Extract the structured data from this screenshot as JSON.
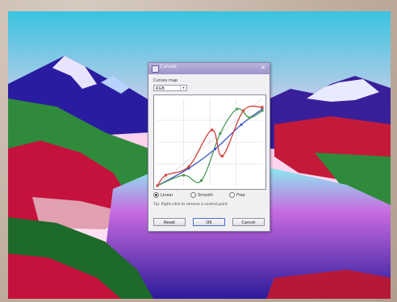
{
  "dialog": {
    "title": "Curves",
    "close_glyph": "✕",
    "channel_label": "Curves map",
    "channel_value": "RGB",
    "radio_options": [
      {
        "label": "Linear",
        "selected": true
      },
      {
        "label": "Smooth",
        "selected": false
      },
      {
        "label": "Free",
        "selected": false
      }
    ],
    "hint": "Tip: Right-click to remove a control point",
    "buttons": {
      "reset": "Reset",
      "ok": "OK",
      "cancel": "Cancel"
    }
  },
  "colors": {
    "red_curve": "#d0413a",
    "green_curve": "#4a9a55",
    "blue_curve": "#3e57c8",
    "titlebar": "#9c94c9"
  },
  "curves": {
    "red": [
      [
        0,
        0
      ],
      [
        0.08,
        0.12
      ],
      [
        0.3,
        0.22
      ],
      [
        0.52,
        0.64
      ],
      [
        0.62,
        0.34
      ],
      [
        0.82,
        0.86
      ],
      [
        1,
        0.9
      ]
    ],
    "green": [
      [
        0,
        0
      ],
      [
        0.25,
        0.12
      ],
      [
        0.42,
        0.06
      ],
      [
        0.6,
        0.6
      ],
      [
        0.76,
        0.88
      ],
      [
        0.88,
        0.78
      ],
      [
        1,
        0.86
      ]
    ],
    "blue": [
      [
        0,
        0
      ],
      [
        0.3,
        0.2
      ],
      [
        0.55,
        0.42
      ],
      [
        0.8,
        0.7
      ],
      [
        1,
        0.88
      ]
    ]
  }
}
